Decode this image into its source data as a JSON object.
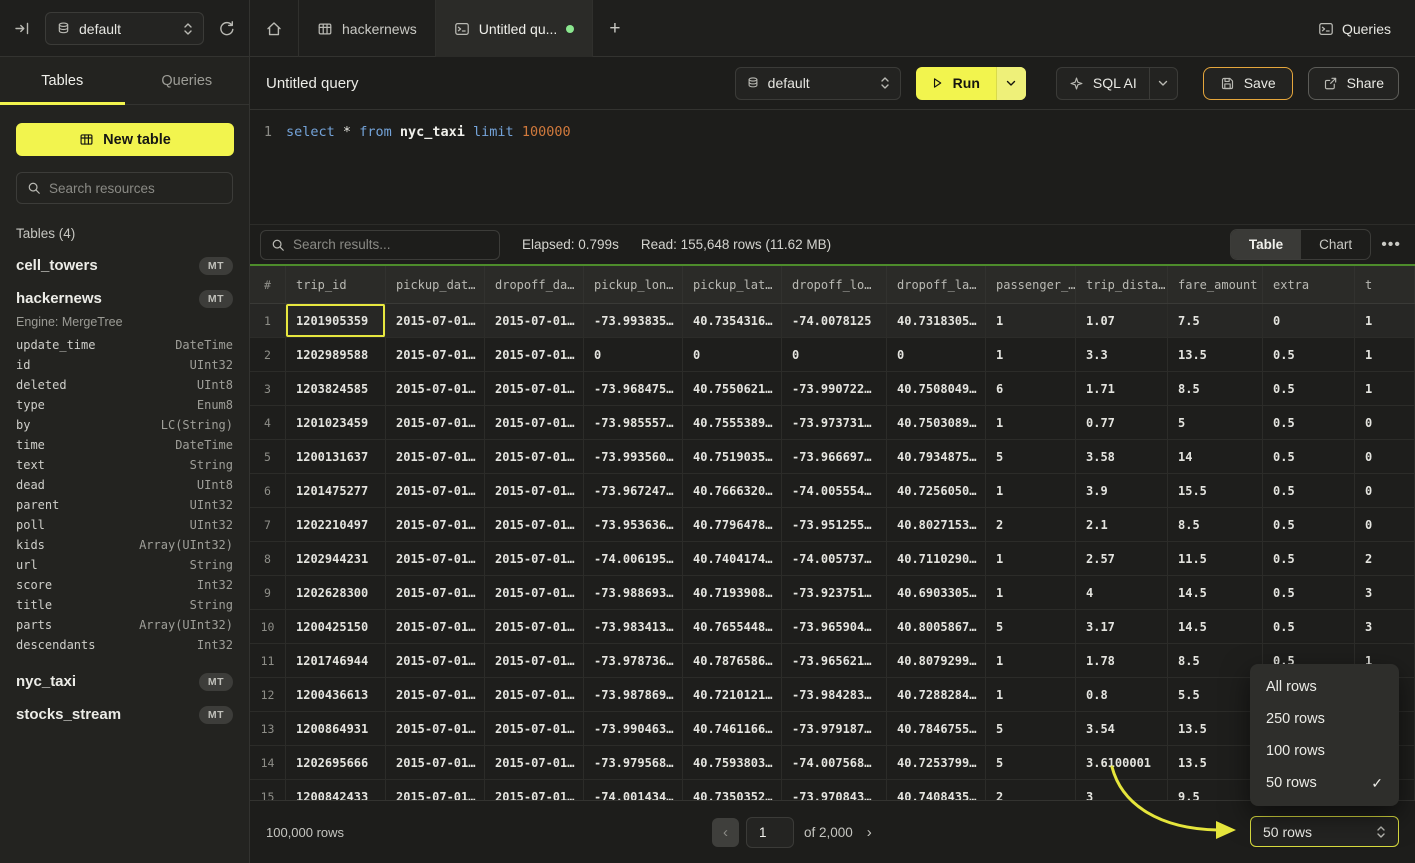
{
  "topbar": {
    "database_selector": "default",
    "tabs": {
      "hackernews": "hackernews",
      "untitled": "Untitled qu..."
    },
    "queries_button": "Queries"
  },
  "sidebar": {
    "tab_tables": "Tables",
    "tab_queries": "Queries",
    "new_table_button": "New table",
    "search_placeholder": "Search resources",
    "section_label": "Tables (4)",
    "tables": [
      {
        "name": "cell_towers",
        "badge": "MT"
      },
      {
        "name": "hackernews",
        "badge": "MT",
        "engine": "Engine: MergeTree",
        "columns": [
          {
            "name": "update_time",
            "type": "DateTime"
          },
          {
            "name": "id",
            "type": "UInt32"
          },
          {
            "name": "deleted",
            "type": "UInt8"
          },
          {
            "name": "type",
            "type": "Enum8"
          },
          {
            "name": "by",
            "type": "LC(String)"
          },
          {
            "name": "time",
            "type": "DateTime"
          },
          {
            "name": "text",
            "type": "String"
          },
          {
            "name": "dead",
            "type": "UInt8"
          },
          {
            "name": "parent",
            "type": "UInt32"
          },
          {
            "name": "poll",
            "type": "UInt32"
          },
          {
            "name": "kids",
            "type": "Array(UInt32)"
          },
          {
            "name": "url",
            "type": "String"
          },
          {
            "name": "score",
            "type": "Int32"
          },
          {
            "name": "title",
            "type": "String"
          },
          {
            "name": "parts",
            "type": "Array(UInt32)"
          },
          {
            "name": "descendants",
            "type": "Int32"
          }
        ]
      },
      {
        "name": "nyc_taxi",
        "badge": "MT"
      },
      {
        "name": "stocks_stream",
        "badge": "MT"
      }
    ]
  },
  "query": {
    "title": "Untitled query",
    "toolbar": {
      "database": "default",
      "run": "Run",
      "sql_ai": "SQL AI",
      "save": "Save",
      "share": "Share"
    },
    "editor": {
      "line_number": "1",
      "tokens": [
        {
          "t": "select",
          "c": "kw"
        },
        {
          "t": "*",
          "c": "op"
        },
        {
          "t": "from",
          "c": "kw"
        },
        {
          "t": "nyc_taxi",
          "c": "ident"
        },
        {
          "t": "limit",
          "c": "kw"
        },
        {
          "t": "100000",
          "c": "num"
        }
      ]
    }
  },
  "results": {
    "search_placeholder": "Search results...",
    "elapsed": "Elapsed: 0.799s",
    "read": "Read: 155,648 rows (11.62 MB)",
    "view_table": "Table",
    "view_chart": "Chart",
    "table": {
      "columns": [
        "#",
        "trip_id",
        "pickup_dat…",
        "dropoff_da…",
        "pickup_lon…",
        "pickup_lat…",
        "dropoff_lo…",
        "dropoff_la…",
        "passenger_…",
        "trip_dista…",
        "fare_amount",
        "extra",
        "t"
      ],
      "rows": [
        {
          "n": "1",
          "cells": [
            "1201905359",
            "2015-07-01…",
            "2015-07-01…",
            "-73.993835…",
            "40.7354316…",
            "-74.0078125",
            "40.7318305…",
            "1",
            "1.07",
            "7.5",
            "0",
            "1"
          ]
        },
        {
          "n": "2",
          "cells": [
            "1202989588",
            "2015-07-01…",
            "2015-07-01…",
            "0",
            "0",
            "0",
            "0",
            "1",
            "3.3",
            "13.5",
            "0.5",
            "1"
          ]
        },
        {
          "n": "3",
          "cells": [
            "1203824585",
            "2015-07-01…",
            "2015-07-01…",
            "-73.968475…",
            "40.7550621…",
            "-73.990722…",
            "40.7508049…",
            "6",
            "1.71",
            "8.5",
            "0.5",
            "1"
          ]
        },
        {
          "n": "4",
          "cells": [
            "1201023459",
            "2015-07-01…",
            "2015-07-01…",
            "-73.985557…",
            "40.7555389…",
            "-73.973731…",
            "40.7503089…",
            "1",
            "0.77",
            "5",
            "0.5",
            "0"
          ]
        },
        {
          "n": "5",
          "cells": [
            "1200131637",
            "2015-07-01…",
            "2015-07-01…",
            "-73.993560…",
            "40.7519035…",
            "-73.966697…",
            "40.7934875…",
            "5",
            "3.58",
            "14",
            "0.5",
            "0"
          ]
        },
        {
          "n": "6",
          "cells": [
            "1201475277",
            "2015-07-01…",
            "2015-07-01…",
            "-73.967247…",
            "40.7666320…",
            "-74.005554…",
            "40.7256050…",
            "1",
            "3.9",
            "15.5",
            "0.5",
            "0"
          ]
        },
        {
          "n": "7",
          "cells": [
            "1202210497",
            "2015-07-01…",
            "2015-07-01…",
            "-73.953636…",
            "40.7796478…",
            "-73.951255…",
            "40.8027153…",
            "2",
            "2.1",
            "8.5",
            "0.5",
            "0"
          ]
        },
        {
          "n": "8",
          "cells": [
            "1202944231",
            "2015-07-01…",
            "2015-07-01…",
            "-74.006195…",
            "40.7404174…",
            "-74.005737…",
            "40.7110290…",
            "1",
            "2.57",
            "11.5",
            "0.5",
            "2"
          ]
        },
        {
          "n": "9",
          "cells": [
            "1202628300",
            "2015-07-01…",
            "2015-07-01…",
            "-73.988693…",
            "40.7193908…",
            "-73.923751…",
            "40.6903305…",
            "1",
            "4",
            "14.5",
            "0.5",
            "3"
          ]
        },
        {
          "n": "10",
          "cells": [
            "1200425150",
            "2015-07-01…",
            "2015-07-01…",
            "-73.983413…",
            "40.7655448…",
            "-73.965904…",
            "40.8005867…",
            "5",
            "3.17",
            "14.5",
            "0.5",
            "3"
          ]
        },
        {
          "n": "11",
          "cells": [
            "1201746944",
            "2015-07-01…",
            "2015-07-01…",
            "-73.978736…",
            "40.7876586…",
            "-73.965621…",
            "40.8079299…",
            "1",
            "1.78",
            "8.5",
            "0.5",
            "1"
          ]
        },
        {
          "n": "12",
          "cells": [
            "1200436613",
            "2015-07-01…",
            "2015-07-01…",
            "-73.987869…",
            "40.7210121…",
            "-73.984283…",
            "40.7288284…",
            "1",
            "0.8",
            "5.5",
            "",
            ""
          ]
        },
        {
          "n": "13",
          "cells": [
            "1200864931",
            "2015-07-01…",
            "2015-07-01…",
            "-73.990463…",
            "40.7461166…",
            "-73.979187…",
            "40.7846755…",
            "5",
            "3.54",
            "13.5",
            "",
            ""
          ]
        },
        {
          "n": "14",
          "cells": [
            "1202695666",
            "2015-07-01…",
            "2015-07-01…",
            "-73.979568…",
            "40.7593803…",
            "-74.007568…",
            "40.7253799…",
            "5",
            "3.6100001",
            "13.5",
            "",
            ""
          ]
        },
        {
          "n": "15",
          "cells": [
            "1200842433",
            "2015-07-01…",
            "2015-07-01…",
            "-74.001434…",
            "40.7350352…",
            "-73.970843…",
            "40.7408435…",
            "2",
            "3",
            "9.5",
            "",
            ""
          ]
        }
      ]
    },
    "footer": {
      "total": "100,000 rows",
      "page": "1",
      "of_label": "of 2,000",
      "page_size": "50 rows"
    }
  },
  "rows_menu": {
    "items": [
      {
        "label": "All rows",
        "checked": false
      },
      {
        "label": "250 rows",
        "checked": false
      },
      {
        "label": "100 rows",
        "checked": false
      },
      {
        "label": "50 rows",
        "checked": true
      }
    ]
  },
  "colors": {
    "accent_yellow": "#f2f44e",
    "save_border_orange": "#e5a63c",
    "table_top_green": "#4d8c2b",
    "tab_dot_green": "#8be78f"
  }
}
